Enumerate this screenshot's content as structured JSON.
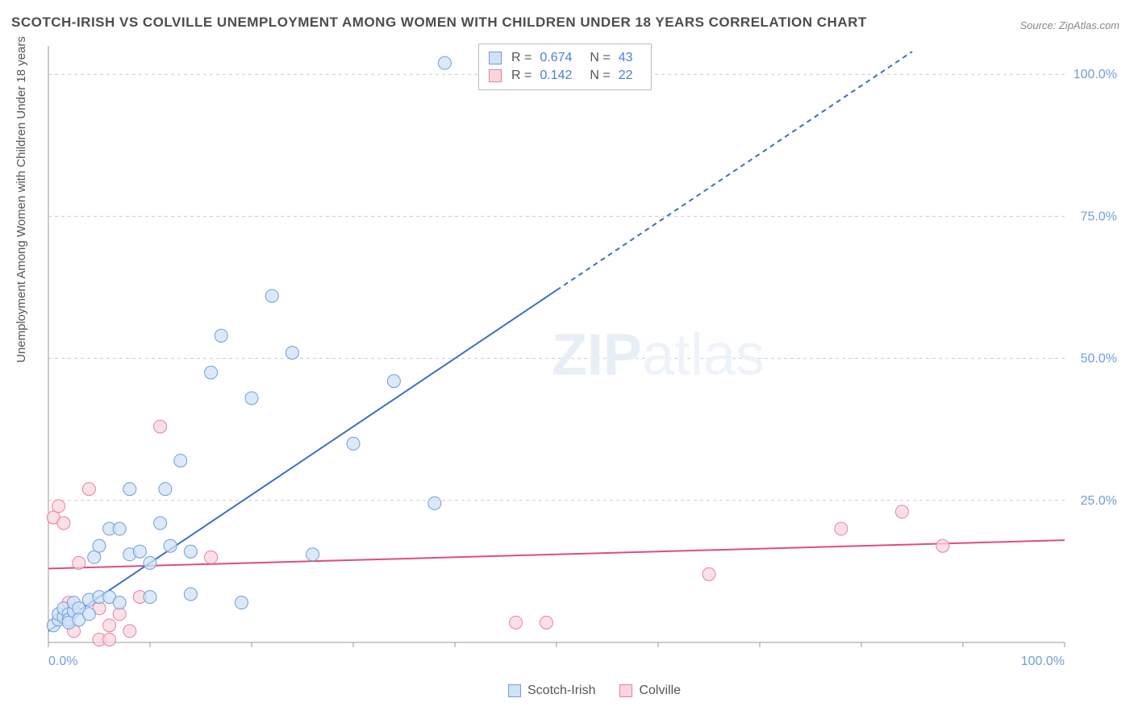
{
  "title": "SCOTCH-IRISH VS COLVILLE UNEMPLOYMENT AMONG WOMEN WITH CHILDREN UNDER 18 YEARS CORRELATION CHART",
  "source": "Source: ZipAtlas.com",
  "ylabel": "Unemployment Among Women with Children Under 18 years",
  "watermark_zip": "ZIP",
  "watermark_atlas": "atlas",
  "chart": {
    "type": "scatter",
    "xlim": [
      0,
      100
    ],
    "ylim": [
      0,
      105
    ],
    "xticks": [
      0,
      10,
      20,
      30,
      40,
      50,
      60,
      70,
      80,
      90,
      100
    ],
    "xtick_labels": {
      "0": "0.0%",
      "100": "100.0%"
    },
    "yticks": [
      25,
      50,
      75,
      100
    ],
    "ytick_labels": {
      "25": "25.0%",
      "50": "50.0%",
      "75": "75.0%",
      "100": "100.0%"
    },
    "grid_color": "#cccccc",
    "axis_color": "#999999",
    "background_color": "#ffffff",
    "series": [
      {
        "name": "Scotch-Irish",
        "color_fill": "#cfe2f7",
        "color_stroke": "#6f9fd8",
        "marker_radius": 8,
        "marker_opacity": 0.75,
        "R": "0.674",
        "N": "43",
        "regression": {
          "x1": 0,
          "y1": 2,
          "x2": 50,
          "y2": 62,
          "stroke": "#3b6fc5",
          "width": 2,
          "dash_extend_to_x": 85
        },
        "points": [
          [
            0.5,
            3
          ],
          [
            1,
            4
          ],
          [
            1,
            5
          ],
          [
            1.5,
            4.5
          ],
          [
            1.5,
            6
          ],
          [
            2,
            5
          ],
          [
            2,
            4
          ],
          [
            2,
            3.5
          ],
          [
            2.5,
            5.5
          ],
          [
            2.5,
            7
          ],
          [
            3,
            6
          ],
          [
            3,
            4
          ],
          [
            4,
            7.5
          ],
          [
            4,
            5
          ],
          [
            4.5,
            15
          ],
          [
            5,
            17
          ],
          [
            5,
            8
          ],
          [
            6,
            20
          ],
          [
            6,
            8
          ],
          [
            7,
            7
          ],
          [
            7,
            20
          ],
          [
            8,
            15.5
          ],
          [
            8,
            27
          ],
          [
            9,
            16
          ],
          [
            10,
            14
          ],
          [
            10,
            8
          ],
          [
            11,
            21
          ],
          [
            11.5,
            27
          ],
          [
            12,
            17
          ],
          [
            13,
            32
          ],
          [
            14,
            8.5
          ],
          [
            14,
            16
          ],
          [
            16,
            47.5
          ],
          [
            17,
            54
          ],
          [
            19,
            7
          ],
          [
            20,
            43
          ],
          [
            22,
            61
          ],
          [
            24,
            51
          ],
          [
            26,
            15.5
          ],
          [
            30,
            35
          ],
          [
            34,
            46
          ],
          [
            38,
            24.5
          ],
          [
            39,
            102
          ]
        ]
      },
      {
        "name": "Colville",
        "color_fill": "#f9d6de",
        "color_stroke": "#e97fa2",
        "marker_radius": 8,
        "marker_opacity": 0.75,
        "R": "0.142",
        "N": "22",
        "regression": {
          "x1": 0,
          "y1": 13,
          "x2": 100,
          "y2": 18,
          "stroke": "#e04d7b",
          "width": 2
        },
        "points": [
          [
            0.5,
            22
          ],
          [
            1,
            24
          ],
          [
            1.5,
            21
          ],
          [
            2,
            7
          ],
          [
            2.5,
            2
          ],
          [
            3,
            14
          ],
          [
            4,
            27
          ],
          [
            5,
            0.5
          ],
          [
            5,
            6
          ],
          [
            6,
            0.5
          ],
          [
            6,
            3
          ],
          [
            7,
            5
          ],
          [
            8,
            2
          ],
          [
            9,
            8
          ],
          [
            11,
            38
          ],
          [
            16,
            15
          ],
          [
            46,
            3.5
          ],
          [
            49,
            3.5
          ],
          [
            65,
            12
          ],
          [
            78,
            20
          ],
          [
            84,
            23
          ],
          [
            88,
            17
          ]
        ]
      }
    ]
  },
  "legend_bottom": [
    {
      "label": "Scotch-Irish",
      "fill": "#cfe2f7",
      "stroke": "#6f9fd8"
    },
    {
      "label": "Colville",
      "fill": "#f9d6de",
      "stroke": "#e97fa2"
    }
  ],
  "legend_top": [
    {
      "fill": "#cfe2f7",
      "stroke": "#6f9fd8",
      "r_label": "R =",
      "r_val": "0.674",
      "n_label": "N =",
      "n_val": "43"
    },
    {
      "fill": "#f9d6de",
      "stroke": "#e97fa2",
      "r_label": "R =",
      "r_val": "0.142",
      "n_label": "N =",
      "n_val": "22"
    }
  ]
}
